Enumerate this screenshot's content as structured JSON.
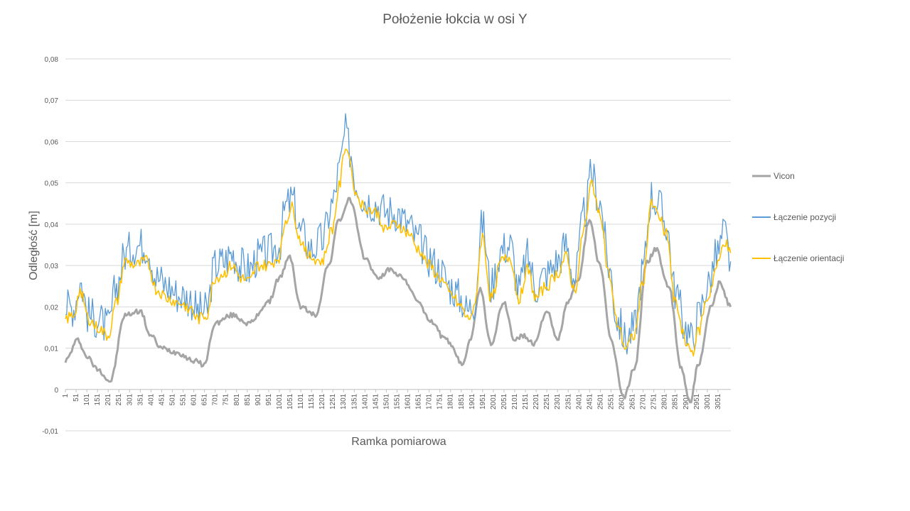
{
  "chart_data": {
    "type": "line",
    "title": "Położenie łokcia w osi Y",
    "xlabel": "Ramka pomiarowa",
    "ylabel": "Odległość [m]",
    "xlim": [
      1,
      3111
    ],
    "ylim": [
      -0.01,
      0.08
    ],
    "y_ticks": [
      {
        "value": -0.01,
        "label": "-0,01"
      },
      {
        "value": 0,
        "label": "0"
      },
      {
        "value": 0.01,
        "label": "0,01"
      },
      {
        "value": 0.02,
        "label": "0,02"
      },
      {
        "value": 0.03,
        "label": "0,03"
      },
      {
        "value": 0.04,
        "label": "0,04"
      },
      {
        "value": 0.05,
        "label": "0,05"
      },
      {
        "value": 0.06,
        "label": "0,06"
      },
      {
        "value": 0.07,
        "label": "0,07"
      },
      {
        "value": 0.08,
        "label": "0,08"
      }
    ],
    "x_ticks": [
      "1",
      "51",
      "101",
      "151",
      "201",
      "251",
      "301",
      "351",
      "401",
      "451",
      "501",
      "551",
      "601",
      "651",
      "701",
      "751",
      "801",
      "851",
      "901",
      "951",
      "1001",
      "1051",
      "1101",
      "1151",
      "1201",
      "1251",
      "1301",
      "1351",
      "1401",
      "1451",
      "1501",
      "1551",
      "1601",
      "1651",
      "1701",
      "1751",
      "1801",
      "1851",
      "1901",
      "1951",
      "2001",
      "2051",
      "2101",
      "2151",
      "2201",
      "2251",
      "2301",
      "2351",
      "2401",
      "2451",
      "2501",
      "2551",
      "2601",
      "2651",
      "2701",
      "2751",
      "2801",
      "2851",
      "2901",
      "2951",
      "3001",
      "3051"
    ],
    "grid": true,
    "legend_position": "right",
    "series": [
      {
        "name": "Vicon",
        "color": "#a5a5a5",
        "x": [
          1,
          60,
          100,
          150,
          210,
          280,
          350,
          400,
          450,
          520,
          600,
          650,
          700,
          780,
          860,
          950,
          1000,
          1050,
          1100,
          1170,
          1230,
          1280,
          1330,
          1400,
          1460,
          1520,
          1580,
          1640,
          1700,
          1780,
          1860,
          1890,
          1940,
          1990,
          2050,
          2100,
          2140,
          2190,
          2250,
          2300,
          2350,
          2400,
          2450,
          2500,
          2550,
          2610,
          2660,
          2720,
          2760,
          2820,
          2880,
          2920,
          2960,
          3020,
          3060,
          3110
        ],
        "values": [
          0.007,
          0.012,
          0.008,
          0.005,
          0.002,
          0.018,
          0.019,
          0.013,
          0.01,
          0.009,
          0.007,
          0.006,
          0.016,
          0.018,
          0.016,
          0.021,
          0.027,
          0.032,
          0.02,
          0.018,
          0.03,
          0.041,
          0.046,
          0.032,
          0.027,
          0.029,
          0.027,
          0.022,
          0.017,
          0.012,
          0.006,
          0.012,
          0.024,
          0.011,
          0.021,
          0.012,
          0.013,
          0.011,
          0.019,
          0.012,
          0.021,
          0.027,
          0.041,
          0.03,
          0.012,
          -0.002,
          0.005,
          0.031,
          0.034,
          0.025,
          0.005,
          -0.003,
          0.006,
          0.02,
          0.026,
          0.02
        ]
      },
      {
        "name": "Łączenie pozycji",
        "color": "#5b9bd5",
        "x": [
          1,
          40,
          70,
          110,
          150,
          200,
          240,
          280,
          330,
          380,
          430,
          480,
          530,
          580,
          620,
          660,
          700,
          740,
          780,
          820,
          860,
          900,
          950,
          1000,
          1030,
          1060,
          1100,
          1150,
          1200,
          1250,
          1280,
          1310,
          1330,
          1360,
          1400,
          1450,
          1500,
          1550,
          1600,
          1650,
          1700,
          1750,
          1800,
          1850,
          1880,
          1910,
          1950,
          1990,
          2040,
          2080,
          2120,
          2160,
          2200,
          2250,
          2300,
          2340,
          2380,
          2430,
          2460,
          2500,
          2540,
          2580,
          2620,
          2660,
          2700,
          2740,
          2770,
          2810,
          2850,
          2900,
          2930,
          2960,
          3000,
          3050,
          3080,
          3110
        ],
        "values": [
          0.02,
          0.02,
          0.026,
          0.018,
          0.017,
          0.015,
          0.025,
          0.033,
          0.035,
          0.035,
          0.027,
          0.025,
          0.023,
          0.022,
          0.019,
          0.019,
          0.03,
          0.031,
          0.033,
          0.03,
          0.029,
          0.032,
          0.033,
          0.035,
          0.044,
          0.046,
          0.038,
          0.034,
          0.036,
          0.045,
          0.053,
          0.062,
          0.058,
          0.05,
          0.046,
          0.045,
          0.043,
          0.043,
          0.04,
          0.036,
          0.032,
          0.029,
          0.025,
          0.022,
          0.019,
          0.021,
          0.04,
          0.025,
          0.034,
          0.035,
          0.024,
          0.032,
          0.025,
          0.028,
          0.031,
          0.035,
          0.027,
          0.043,
          0.052,
          0.045,
          0.03,
          0.017,
          0.012,
          0.015,
          0.029,
          0.047,
          0.045,
          0.04,
          0.024,
          0.015,
          0.012,
          0.018,
          0.025,
          0.033,
          0.038,
          0.031
        ]
      },
      {
        "name": "Łączenie orientacji",
        "color": "#ffc000",
        "x": [
          1,
          40,
          70,
          110,
          150,
          200,
          240,
          280,
          330,
          380,
          430,
          480,
          530,
          580,
          620,
          660,
          700,
          740,
          780,
          820,
          860,
          900,
          950,
          1000,
          1030,
          1060,
          1100,
          1150,
          1200,
          1250,
          1280,
          1310,
          1330,
          1360,
          1400,
          1450,
          1500,
          1550,
          1600,
          1650,
          1700,
          1750,
          1800,
          1850,
          1880,
          1910,
          1950,
          1990,
          2040,
          2080,
          2120,
          2160,
          2200,
          2250,
          2300,
          2340,
          2380,
          2430,
          2460,
          2500,
          2540,
          2580,
          2620,
          2660,
          2700,
          2740,
          2770,
          2810,
          2850,
          2900,
          2930,
          2960,
          3000,
          3050,
          3080,
          3110
        ],
        "values": [
          0.017,
          0.018,
          0.024,
          0.017,
          0.015,
          0.013,
          0.021,
          0.031,
          0.03,
          0.031,
          0.024,
          0.022,
          0.021,
          0.02,
          0.017,
          0.018,
          0.027,
          0.028,
          0.03,
          0.027,
          0.026,
          0.03,
          0.03,
          0.032,
          0.041,
          0.044,
          0.036,
          0.032,
          0.031,
          0.039,
          0.049,
          0.059,
          0.056,
          0.047,
          0.044,
          0.043,
          0.039,
          0.04,
          0.038,
          0.034,
          0.03,
          0.027,
          0.023,
          0.02,
          0.017,
          0.019,
          0.037,
          0.022,
          0.031,
          0.032,
          0.022,
          0.029,
          0.022,
          0.025,
          0.028,
          0.032,
          0.024,
          0.04,
          0.05,
          0.043,
          0.028,
          0.016,
          0.01,
          0.013,
          0.026,
          0.046,
          0.042,
          0.038,
          0.021,
          0.012,
          0.009,
          0.014,
          0.022,
          0.03,
          0.036,
          0.033
        ]
      }
    ]
  }
}
